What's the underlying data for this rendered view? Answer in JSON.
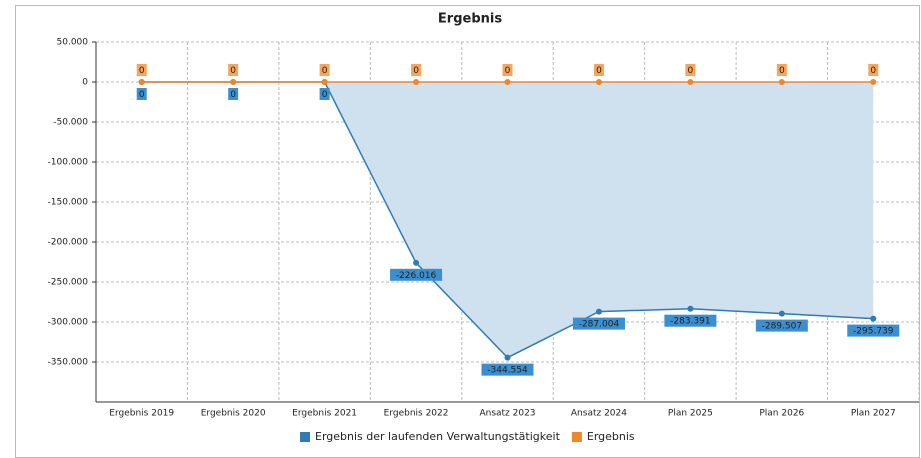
{
  "chart_data": {
    "type": "line",
    "title": "Ergebnis",
    "categories": [
      "Ergebnis 2019",
      "Ergebnis 2020",
      "Ergebnis 2021",
      "Ergebnis 2022",
      "Ansatz 2023",
      "Ansatz 2024",
      "Plan 2025",
      "Plan 2026",
      "Plan 2027"
    ],
    "series": [
      {
        "name": "Ergebnis der laufenden Verwaltungstätigkeit",
        "color": "#2f7bb6",
        "area": true,
        "values": [
          0,
          0,
          0,
          -226016,
          -344554,
          -287004,
          -283391,
          -289507,
          -295739
        ],
        "value_labels": [
          "0",
          "0",
          "0",
          "-226.016",
          "-344.554",
          "-287.004",
          "-283.391",
          "-289.507",
          "-295.739"
        ]
      },
      {
        "name": "Ergebnis",
        "color": "#f0862a",
        "values": [
          0,
          0,
          0,
          0,
          0,
          0,
          0,
          0,
          0
        ]
      }
    ],
    "ylim": [
      -400000,
      50000
    ],
    "yticks": [
      {
        "value": 50000,
        "label": "50.000"
      },
      0,
      {
        "value": -50000,
        "label": "-50.000"
      },
      {
        "value": -100000,
        "label": "-100.000"
      },
      {
        "value": -150000,
        "label": "-150.000"
      },
      {
        "value": -200000,
        "label": "-200.000"
      },
      {
        "value": -250000,
        "label": "-250.000"
      },
      {
        "value": -300000,
        "label": "-300.000"
      },
      {
        "value": -350000,
        "label": "-350.000"
      }
    ],
    "grid": true,
    "legend": "bottom"
  }
}
